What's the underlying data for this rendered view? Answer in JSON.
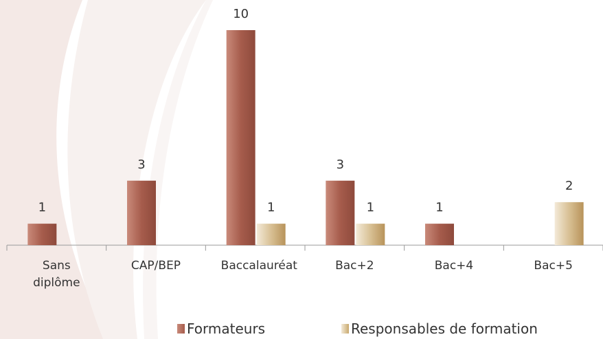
{
  "chart_data": {
    "type": "bar",
    "categories": [
      "Sans diplôme",
      "CAP/BEP",
      "Baccalauréat",
      "Bac+2",
      "Bac+4",
      "Bac+5"
    ],
    "series": [
      {
        "name": "Formateurs",
        "color": "#a65c4c",
        "values": [
          1,
          3,
          10,
          3,
          1,
          null
        ]
      },
      {
        "name": "Responsables de formation",
        "color": "#c9a96e",
        "values": [
          null,
          null,
          1,
          1,
          null,
          2
        ]
      }
    ]
  }
}
